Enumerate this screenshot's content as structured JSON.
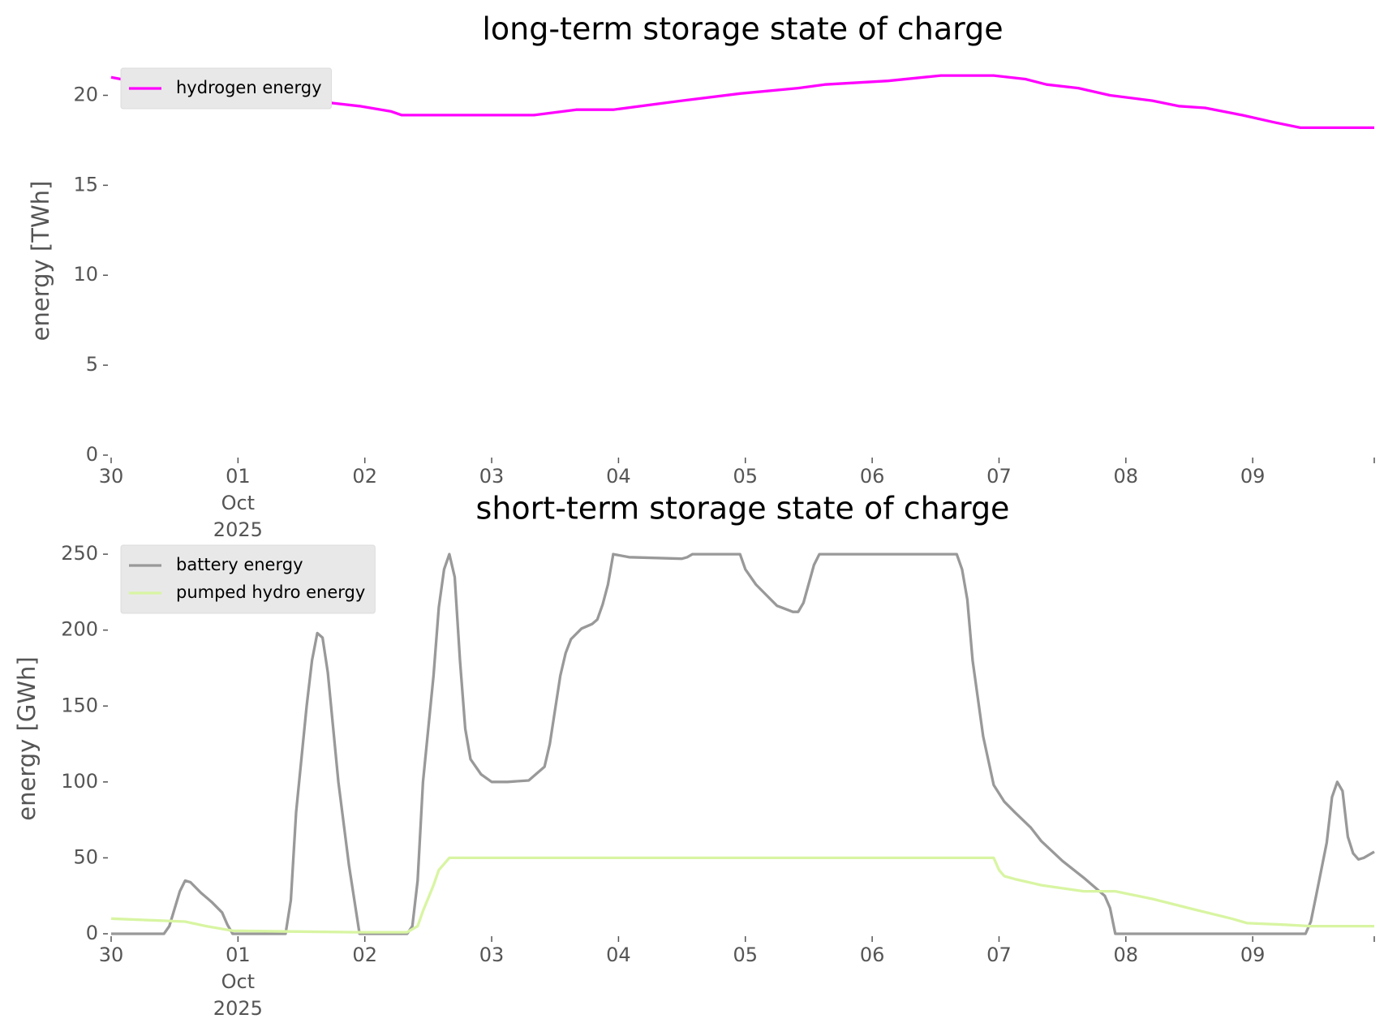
{
  "chart_data": [
    {
      "type": "line",
      "title": "long-term storage state of charge",
      "ylabel": "energy [TWh]",
      "legend": "upper left",
      "grid": false,
      "xlim": [
        "2025-09-30T00:00",
        "2025-10-09T23:00"
      ],
      "ylim": [
        0,
        21.6
      ],
      "yticks": [
        0,
        5,
        10,
        15,
        20
      ],
      "xticks": [
        {
          "value": "2025-09-30T00:00",
          "label": "30"
        },
        {
          "value": "2025-10-01T00:00",
          "label": "01 Oct 2025"
        },
        {
          "value": "2025-10-02T00:00",
          "label": "02"
        },
        {
          "value": "2025-10-03T00:00",
          "label": "03"
        },
        {
          "value": "2025-10-04T00:00",
          "label": "04"
        },
        {
          "value": "2025-10-05T00:00",
          "label": "05"
        },
        {
          "value": "2025-10-06T00:00",
          "label": "06"
        },
        {
          "value": "2025-10-07T00:00",
          "label": "07"
        },
        {
          "value": "2025-10-08T00:00",
          "label": "08"
        },
        {
          "value": "2025-10-09T00:00",
          "label": "09"
        }
      ],
      "series": [
        {
          "name": "hydrogen energy",
          "color": "#ff00ff",
          "x": [
            "2025-09-30T00:00",
            "2025-09-30T09:00",
            "2025-09-30T23:00",
            "2025-10-01T08:00",
            "2025-10-01T17:00",
            "2025-10-01T23:00",
            "2025-10-02T05:00",
            "2025-10-02T07:00",
            "2025-10-03T08:00",
            "2025-10-03T16:00",
            "2025-10-03T23:00",
            "2025-10-04T12:00",
            "2025-10-04T23:00",
            "2025-10-05T10:00",
            "2025-10-05T15:00",
            "2025-10-06T03:00",
            "2025-10-06T13:00",
            "2025-10-06T23:00",
            "2025-10-07T05:00",
            "2025-10-07T09:00",
            "2025-10-07T15:00",
            "2025-10-07T21:00",
            "2025-10-08T05:00",
            "2025-10-08T10:00",
            "2025-10-08T15:00",
            "2025-10-08T22:00",
            "2025-10-09T04:00",
            "2025-10-09T09:00",
            "2025-10-09T23:00"
          ],
          "values": [
            21.0,
            20.5,
            20.0,
            19.6,
            19.6,
            19.4,
            19.1,
            18.9,
            18.9,
            19.2,
            19.2,
            19.7,
            20.1,
            20.4,
            20.6,
            20.8,
            21.1,
            21.1,
            20.9,
            20.6,
            20.4,
            20.0,
            19.7,
            19.4,
            19.3,
            18.9,
            18.5,
            18.2,
            18.2
          ]
        }
      ]
    },
    {
      "type": "line",
      "title": "short-term storage state of charge",
      "ylabel": "energy [GWh]",
      "legend": "upper left",
      "grid": false,
      "xlim": [
        "2025-09-30T00:00",
        "2025-10-09T23:00"
      ],
      "ylim": [
        0,
        257
      ],
      "yticks": [
        0,
        50,
        100,
        150,
        200,
        250
      ],
      "xticks": [
        {
          "value": "2025-09-30T00:00",
          "label": "30"
        },
        {
          "value": "2025-10-01T00:00",
          "label": "01 Oct 2025"
        },
        {
          "value": "2025-10-02T00:00",
          "label": "02"
        },
        {
          "value": "2025-10-03T00:00",
          "label": "03"
        },
        {
          "value": "2025-10-04T00:00",
          "label": "04"
        },
        {
          "value": "2025-10-05T00:00",
          "label": "05"
        },
        {
          "value": "2025-10-06T00:00",
          "label": "06"
        },
        {
          "value": "2025-10-07T00:00",
          "label": "07"
        },
        {
          "value": "2025-10-08T00:00",
          "label": "08"
        },
        {
          "value": "2025-10-09T00:00",
          "label": "09"
        }
      ],
      "series": [
        {
          "name": "battery energy",
          "color": "#999999",
          "x": [
            "2025-09-30T00:00",
            "2025-09-30T10:00",
            "2025-09-30T11:00",
            "2025-09-30T13:00",
            "2025-09-30T14:00",
            "2025-09-30T15:00",
            "2025-09-30T17:00",
            "2025-09-30T19:00",
            "2025-09-30T21:00",
            "2025-09-30T22:00",
            "2025-09-30T23:00",
            "2025-10-01T09:00",
            "2025-10-01T10:00",
            "2025-10-01T11:00",
            "2025-10-01T13:00",
            "2025-10-01T14:00",
            "2025-10-01T15:00",
            "2025-10-01T16:00",
            "2025-10-01T17:00",
            "2025-10-01T19:00",
            "2025-10-01T21:00",
            "2025-10-01T23:00",
            "2025-10-02T08:00",
            "2025-10-02T09:00",
            "2025-10-02T10:00",
            "2025-10-02T11:00",
            "2025-10-02T13:00",
            "2025-10-02T14:00",
            "2025-10-02T15:00",
            "2025-10-02T16:00",
            "2025-10-02T17:00",
            "2025-10-02T18:00",
            "2025-10-02T19:00",
            "2025-10-02T20:00",
            "2025-10-02T22:00",
            "2025-10-03T00:00",
            "2025-10-03T03:00",
            "2025-10-03T07:00",
            "2025-10-03T08:00",
            "2025-10-03T10:00",
            "2025-10-03T11:00",
            "2025-10-03T13:00",
            "2025-10-03T14:00",
            "2025-10-03T15:00",
            "2025-10-03T17:00",
            "2025-10-03T19:00",
            "2025-10-03T20:00",
            "2025-10-03T21:00",
            "2025-10-03T22:00",
            "2025-10-03T23:00",
            "2025-10-04T02:00",
            "2025-10-04T12:00",
            "2025-10-04T13:00",
            "2025-10-04T14:00",
            "2025-10-04T23:00",
            "2025-10-05T00:00",
            "2025-10-05T02:00",
            "2025-10-05T04:00",
            "2025-10-05T06:00",
            "2025-10-05T09:00",
            "2025-10-05T10:00",
            "2025-10-05T11:00",
            "2025-10-05T13:00",
            "2025-10-05T14:00",
            "2025-10-06T16:00",
            "2025-10-06T17:00",
            "2025-10-06T18:00",
            "2025-10-06T19:00",
            "2025-10-06T21:00",
            "2025-10-06T23:00",
            "2025-10-07T01:00",
            "2025-10-07T03:00",
            "2025-10-07T06:00",
            "2025-10-07T08:00",
            "2025-10-07T12:00",
            "2025-10-07T16:00",
            "2025-10-07T20:00",
            "2025-10-07T21:00",
            "2025-10-07T22:00",
            "2025-10-09T10:00",
            "2025-10-09T11:00",
            "2025-10-09T12:00",
            "2025-10-09T14:00",
            "2025-10-09T15:00",
            "2025-10-09T16:00",
            "2025-10-09T17:00",
            "2025-10-09T18:00",
            "2025-10-09T19:00",
            "2025-10-09T20:00",
            "2025-10-09T21:00",
            "2025-10-09T22:00",
            "2025-10-09T23:00"
          ],
          "values": [
            0,
            0,
            5,
            28,
            35,
            34,
            27,
            21,
            14,
            6,
            0,
            0,
            22,
            80,
            150,
            180,
            198,
            195,
            172,
            100,
            45,
            0,
            0,
            5,
            35,
            100,
            170,
            215,
            240,
            250,
            235,
            180,
            135,
            115,
            105,
            100,
            100,
            101,
            104,
            110,
            125,
            170,
            185,
            194,
            201,
            204,
            207,
            217,
            230,
            250,
            248,
            247,
            248,
            250,
            250,
            240,
            230,
            223,
            216,
            212,
            212,
            218,
            243,
            250,
            250,
            240,
            220,
            180,
            130,
            98,
            87,
            80,
            70,
            61,
            48,
            37,
            25,
            17,
            0,
            0,
            8,
            25,
            60,
            90,
            100,
            94,
            64,
            53,
            49,
            50,
            52,
            54
          ]
        },
        {
          "name": "pumped hydro energy",
          "color": "#d8f5a2",
          "x": [
            "2025-09-30T00:00",
            "2025-09-30T14:00",
            "2025-09-30T18:00",
            "2025-09-30T23:00",
            "2025-10-01T10:00",
            "2025-10-01T23:00",
            "2025-10-02T08:00",
            "2025-10-02T10:00",
            "2025-10-02T11:00",
            "2025-10-02T13:00",
            "2025-10-02T14:00",
            "2025-10-02T16:00",
            "2025-10-06T23:00",
            "2025-10-07T00:00",
            "2025-10-07T01:00",
            "2025-10-07T03:00",
            "2025-10-07T08:00",
            "2025-10-07T16:00",
            "2025-10-07T22:00",
            "2025-10-08T05:00",
            "2025-10-08T13:00",
            "2025-10-08T20:00",
            "2025-10-08T23:00",
            "2025-10-09T06:00",
            "2025-10-09T11:00",
            "2025-10-09T23:00"
          ],
          "values": [
            10,
            8,
            5,
            2,
            1.5,
            1,
            1,
            5,
            15,
            32,
            42,
            50,
            50,
            42,
            38,
            36,
            32,
            28,
            28,
            23,
            16,
            10,
            7,
            6,
            5,
            5
          ]
        }
      ]
    }
  ]
}
